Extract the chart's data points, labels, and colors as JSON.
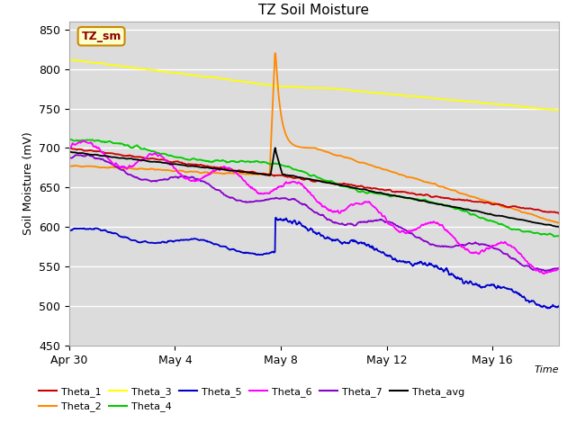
{
  "title": "TZ Soil Moisture",
  "ylabel": "Soil Moisture (mV)",
  "xlabel": "Time",
  "ylim": [
    450,
    860
  ],
  "xlim": [
    0,
    18.5
  ],
  "xtick_positions": [
    0,
    4,
    8,
    12,
    16
  ],
  "xtick_labels": [
    "Apr 30",
    "May 4",
    "May 8",
    "May 12",
    "May 16"
  ],
  "ytick_positions": [
    450,
    500,
    550,
    600,
    650,
    700,
    750,
    800,
    850
  ],
  "background_color": "#dcdcdc",
  "plot_bg_color": "#dcdcdc",
  "legend_label": "TZ_sm",
  "series_colors": {
    "Theta_1": "#cc0000",
    "Theta_2": "#ff8800",
    "Theta_3": "#ffff00",
    "Theta_4": "#00cc00",
    "Theta_5": "#0000cc",
    "Theta_6": "#ff00ff",
    "Theta_7": "#8800cc",
    "Theta_avg": "#000000"
  }
}
